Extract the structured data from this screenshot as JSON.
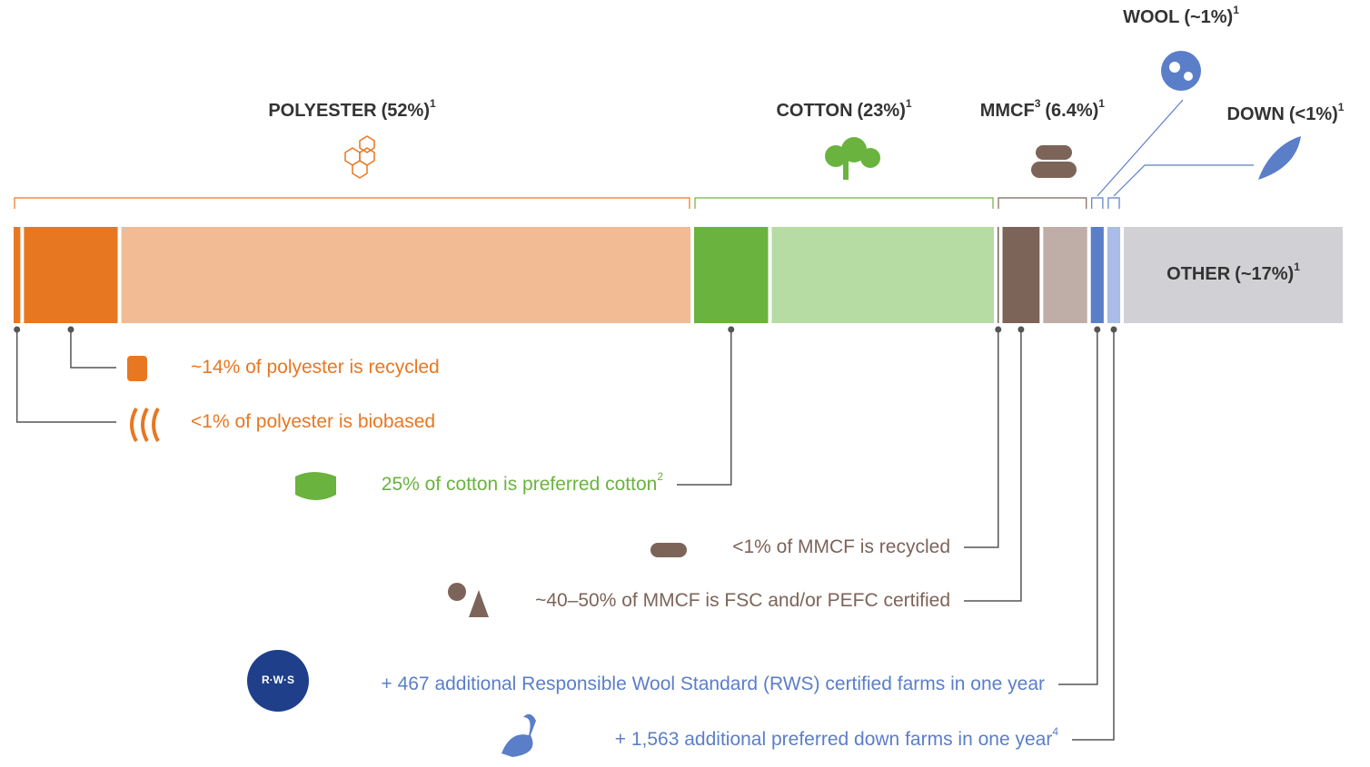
{
  "chart_data": {
    "type": "stacked_bar",
    "segments": [
      {
        "name": "POLYESTER",
        "share_label": "(52%)",
        "note": "1",
        "value": 52,
        "color": "#f3bb94",
        "dark": "#e87722",
        "parts": [
          {
            "value": 1,
            "annotation": "<1% of polyester is biobased"
          },
          {
            "value": 14,
            "annotation": "~14% of polyester is recycled"
          }
        ]
      },
      {
        "name": "COTTON",
        "share_label": "(23%)",
        "note": "1",
        "value": 23,
        "color": "#b6dba3",
        "dark": "#6ab33e",
        "parts": [
          {
            "value": 25,
            "annotation": "25% of cotton is preferred cotton",
            "annotation_note": "2"
          }
        ]
      },
      {
        "name": "MMCF",
        "name_note": "3",
        "share_label": "(6.4%)",
        "note": "1",
        "value": 6.4,
        "color": "#bfada8",
        "dark": "#7d6459",
        "parts": [
          {
            "value": 1,
            "annotation": "<1% of MMCF is recycled"
          },
          {
            "value": 45,
            "annotation": "~40–50% of MMCF is FSC and/or PEFC certified"
          }
        ]
      },
      {
        "name": "WOOL",
        "share_label": "(~1%)",
        "note": "1",
        "value": 1,
        "color": "#5b7ec9",
        "dark": "#5b7ec9",
        "annotation": "+ 467 additional Responsible Wool Standard (RWS) certified farms in one year"
      },
      {
        "name": "DOWN",
        "share_label": "(<1%)",
        "note": "1",
        "value": 1,
        "color": "#a9bde6",
        "dark": "#5b7ec9",
        "annotation": "+ 1,563 additional preferred down farms in one year",
        "annotation_note": "4"
      },
      {
        "name": "OTHER",
        "share_label": "(~17%)",
        "note": "1",
        "value": 17,
        "color": "#d1d1d5",
        "dark": "#77777f"
      }
    ]
  }
}
